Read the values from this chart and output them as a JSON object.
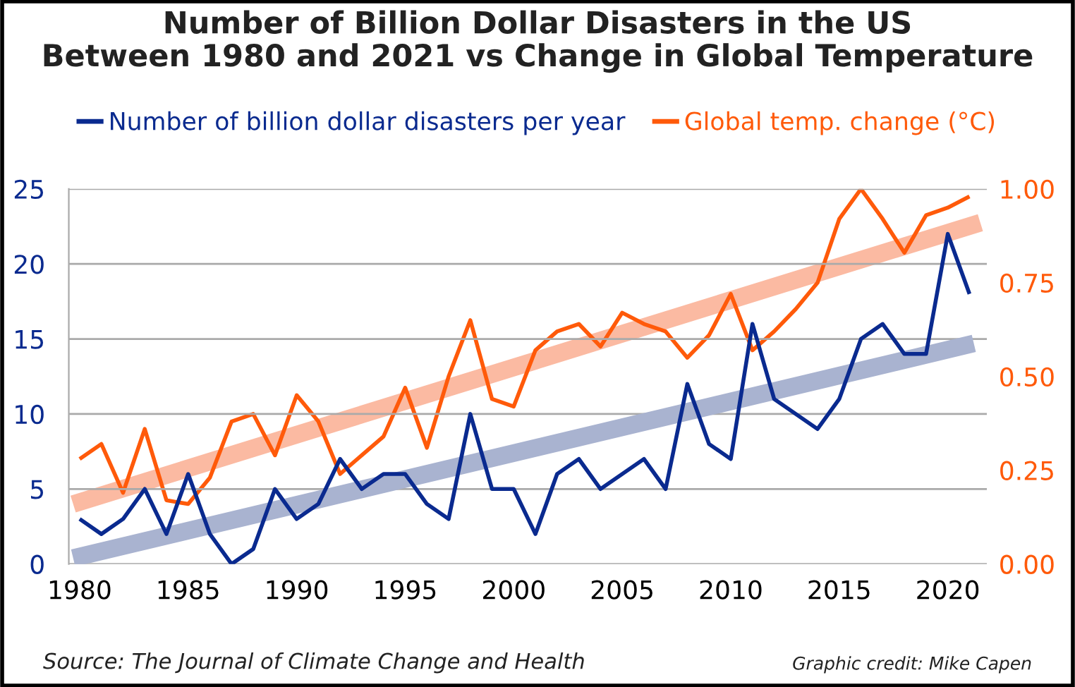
{
  "chart_data": {
    "type": "line",
    "title": "Number of Billion Dollar Disasters in the US\nBetween 1980 and 2021 vs Change in Global Temperature",
    "x": [
      1980,
      1981,
      1982,
      1983,
      1984,
      1985,
      1986,
      1987,
      1988,
      1989,
      1990,
      1991,
      1992,
      1993,
      1994,
      1995,
      1996,
      1997,
      1998,
      1999,
      2000,
      2001,
      2002,
      2003,
      2004,
      2005,
      2006,
      2007,
      2008,
      2009,
      2010,
      2011,
      2012,
      2013,
      2014,
      2015,
      2016,
      2017,
      2018,
      2019,
      2020,
      2021
    ],
    "series": [
      {
        "name": "Number of billion dollar disasters per year",
        "color": "#0a2a8f",
        "values": [
          3,
          2,
          3,
          5,
          2,
          6,
          2,
          0,
          1,
          5,
          3,
          4,
          7,
          5,
          6,
          6,
          4,
          3,
          10,
          5,
          5,
          2,
          6,
          7,
          5,
          6,
          7,
          5,
          12,
          8,
          7,
          16,
          11,
          10,
          9,
          11,
          15,
          16,
          14,
          14,
          22,
          18
        ]
      },
      {
        "name": "Global temp. change (°C)",
        "color": "#ff5a0a",
        "axis": "y2",
        "values": [
          0.28,
          0.32,
          0.19,
          0.36,
          0.17,
          0.16,
          0.23,
          0.38,
          0.4,
          0.29,
          0.45,
          0.38,
          0.24,
          0.29,
          0.34,
          0.47,
          0.31,
          0.5,
          0.65,
          0.44,
          0.42,
          0.57,
          0.62,
          0.64,
          0.58,
          0.67,
          0.64,
          0.62,
          0.55,
          0.61,
          0.72,
          0.57,
          0.62,
          0.68,
          0.75,
          0.92,
          1.0,
          0.92,
          0.83,
          0.93,
          0.95,
          0.98
        ]
      },
      {
        "type": "line",
        "color": "#a9b3d0",
        "x": [
          1979.7,
          2021.2
        ],
        "values": [
          0.4,
          14.7
        ]
      },
      {
        "type": "line",
        "color": "#fbbaa2",
        "axis": "y2",
        "x": [
          1979.7,
          2021.5
        ],
        "values": [
          0.16,
          0.91
        ]
      }
    ],
    "xlim": [
      1979.5,
      2021.8
    ],
    "xticks": [
      1980,
      1985,
      1990,
      1995,
      2000,
      2005,
      2010,
      2015,
      2020
    ],
    "ylim": [
      0,
      25
    ],
    "yticks": [
      0,
      5,
      10,
      15,
      20,
      25
    ],
    "y2lim": [
      0,
      1
    ],
    "y2ticks": [
      {
        "value": 0,
        "label": "0.00"
      },
      {
        "value": 0.25,
        "label": "0.25"
      },
      {
        "value": 0.5,
        "label": "0.50"
      },
      {
        "value": 0.75,
        "label": "0.75"
      },
      {
        "value": 1,
        "label": "1.00"
      }
    ],
    "grid": "y",
    "legend": "top",
    "annotations": [
      "Source: The Journal of Climate Change and Health",
      "Graphic credit: Mike Capen"
    ]
  }
}
